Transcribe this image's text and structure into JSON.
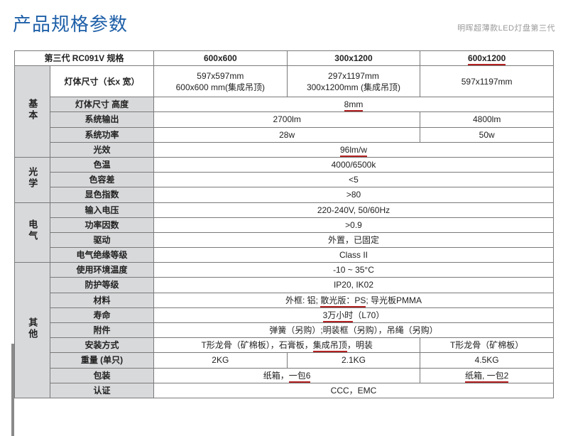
{
  "colors": {
    "title": "#1e5fa8",
    "subtitle": "#9a9a9a",
    "border": "#7a7a7a",
    "grey_bg": "#d8d9db",
    "underline": "#b22222",
    "text": "#222222"
  },
  "header": {
    "title": "产品规格参数",
    "subtitle": "明晖超薄款LED灯盘第三代"
  },
  "table": {
    "col_headers": [
      "第三代 RC091V 规格",
      "600x600",
      "300x1200",
      "600x1200"
    ],
    "groups": {
      "basic": "基本",
      "optical": "光学",
      "electrical": "电气",
      "other": "其他"
    },
    "rows": {
      "body_size_lw": {
        "label": "灯体尺寸（长x 宽）",
        "c1": "597x597mm\n600x600 mm(集成吊顶)",
        "c2": "297x1197mm\n300x1200mm (集成吊顶)",
        "c3": "597x1197mm"
      },
      "body_size_h": {
        "label": "灯体尺寸 高度",
        "merged": "8mm"
      },
      "sys_output": {
        "label": "系统输出",
        "c12": "2700lm",
        "c3": "4800lm"
      },
      "sys_power": {
        "label": "系统功率",
        "c12": "28w",
        "c3": "50w"
      },
      "efficacy": {
        "label": "光效",
        "merged": "96lm/w"
      },
      "cct": {
        "label": "色温",
        "merged": "4000/6500k"
      },
      "sdcm": {
        "label": "色容差",
        "merged": "<5"
      },
      "cri": {
        "label": "显色指数",
        "merged": ">80"
      },
      "input_v": {
        "label": "输入电压",
        "merged": "220-240V, 50/60Hz"
      },
      "pf": {
        "label": "功率因数",
        "merged": ">0.9"
      },
      "driver": {
        "label": "驱动",
        "merged": "外置，已固定"
      },
      "insulation": {
        "label": "电气绝缘等级",
        "merged": "Class II"
      },
      "ambient": {
        "label": "使用环境温度",
        "merged": "-10 ~ 35°C"
      },
      "ip": {
        "label": "防护等级",
        "merged": "IP20, IK02"
      },
      "material": {
        "label": "材料",
        "prefix": "外框: 铝; ",
        "highlight": "散光版：PS",
        "suffix": "; 导光板PMMA"
      },
      "life": {
        "label": "寿命",
        "highlight": "3万小时",
        "suffix": "（L70）"
      },
      "accessory": {
        "label": "附件",
        "merged": "弹簧（另购）;明装框（另购），吊绳（另购）"
      },
      "install": {
        "label": "安装方式",
        "c12_pre": "T形龙骨（矿棉板），石膏板，",
        "c12_hl": "集成吊顶",
        "c12_suf": "，明装",
        "c3": "T形龙骨（矿棉板）"
      },
      "weight": {
        "label": "重量 (单只)",
        "c1": "2KG",
        "c2": "2.1KG",
        "c3": "4.5KG"
      },
      "packaging": {
        "label": "包装",
        "c12_pre": "纸箱，",
        "c12_hl": "一包6",
        "c3_pre": "纸箱, ",
        "c3_hl": "一包2"
      },
      "cert": {
        "label": "认证",
        "merged": "CCC，EMC"
      }
    }
  }
}
